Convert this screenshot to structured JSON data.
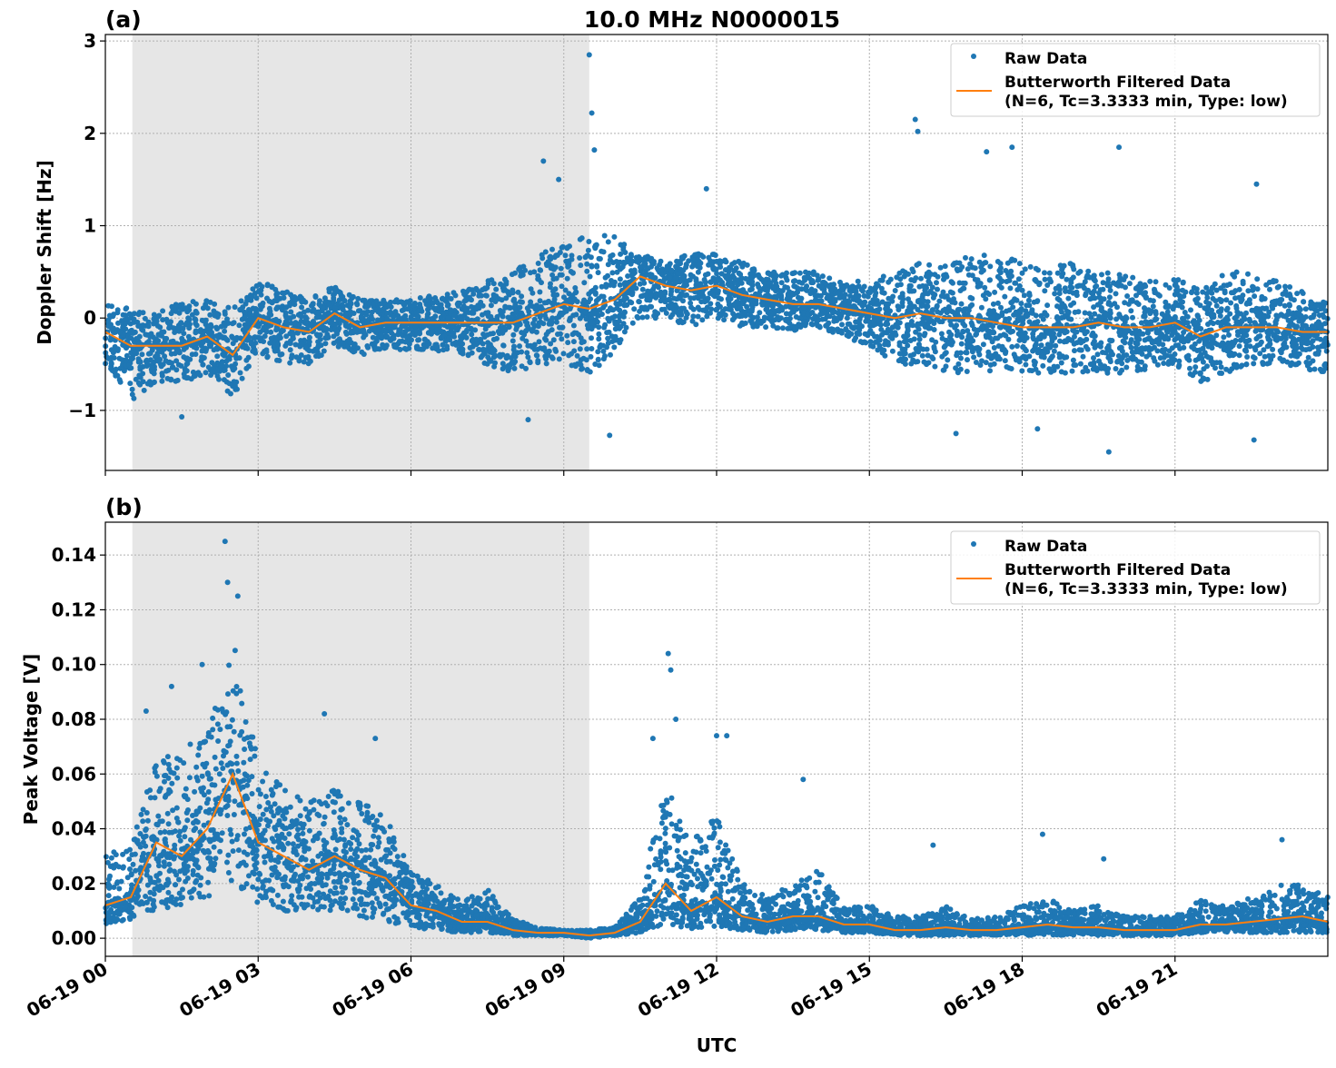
{
  "title": "10.0 MHz N0000015",
  "xlabel": "UTC",
  "x_tick_labels": [
    "06-19 00",
    "06-19 03",
    "06-19 06",
    "06-19 09",
    "06-19 12",
    "06-19 15",
    "06-19 18",
    "06-19 21"
  ],
  "x_ticks_hours": [
    0,
    3,
    6,
    9,
    12,
    15,
    18,
    21
  ],
  "xlim_hours": [
    0,
    24
  ],
  "shaded_span_hours": [
    0.53,
    9.5
  ],
  "colors": {
    "raw": "#1f77b4",
    "filtered": "#ff7f0e",
    "shade": "#e6e6e6",
    "grid": "#b0b0b0"
  },
  "legend": {
    "raw": "Raw Data",
    "filtered_line1": "Butterworth Filtered Data",
    "filtered_line2": "(N=6, Tc=3.3333 min, Type: low)",
    "placement": "top-right"
  },
  "chart_data": [
    {
      "panel_label": "(a)",
      "type": "scatter",
      "ylabel": "Doppler Shift [Hz]",
      "ylim": [
        -1.65,
        3.07
      ],
      "y_ticks": [
        3,
        2,
        1,
        0,
        -1
      ],
      "y_tick_labels": [
        "3",
        "2",
        "1",
        "0",
        "−1"
      ],
      "grid": true,
      "x_hours": [
        0,
        0.5,
        1,
        1.5,
        2,
        2.5,
        3,
        3.5,
        4,
        4.5,
        5,
        5.5,
        6,
        6.5,
        7,
        7.5,
        8,
        8.5,
        9,
        9.5,
        10,
        10.5,
        11,
        11.5,
        12,
        12.5,
        13,
        13.5,
        14,
        14.5,
        15,
        15.5,
        16,
        16.5,
        17,
        17.5,
        18,
        18.5,
        19,
        19.5,
        20,
        20.5,
        21,
        21.5,
        22,
        22.5,
        23,
        23.5,
        24
      ],
      "filtered": [
        -0.15,
        -0.3,
        -0.3,
        -0.3,
        -0.2,
        -0.4,
        0.0,
        -0.1,
        -0.15,
        0.05,
        -0.1,
        -0.05,
        -0.05,
        -0.05,
        -0.05,
        -0.05,
        -0.05,
        0.05,
        0.15,
        0.1,
        0.2,
        0.45,
        0.35,
        0.3,
        0.35,
        0.25,
        0.2,
        0.15,
        0.15,
        0.1,
        0.05,
        0.0,
        0.05,
        0.0,
        0.0,
        -0.05,
        -0.1,
        -0.1,
        -0.1,
        -0.05,
        -0.1,
        -0.1,
        -0.05,
        -0.2,
        -0.1,
        -0.1,
        -0.1,
        -0.15,
        -0.15
      ],
      "raw_low": [
        -0.5,
        -0.9,
        -0.7,
        -0.7,
        -0.6,
        -0.85,
        -0.4,
        -0.5,
        -0.5,
        -0.3,
        -0.4,
        -0.35,
        -0.35,
        -0.35,
        -0.4,
        -0.5,
        -0.6,
        -0.5,
        -0.5,
        -0.6,
        -0.4,
        0.0,
        0.0,
        -0.1,
        0.0,
        -0.1,
        -0.1,
        -0.15,
        -0.1,
        -0.2,
        -0.3,
        -0.5,
        -0.5,
        -0.6,
        -0.6,
        -0.6,
        -0.6,
        -0.6,
        -0.6,
        -0.6,
        -0.6,
        -0.55,
        -0.5,
        -0.7,
        -0.6,
        -0.5,
        -0.5,
        -0.55,
        -0.6
      ],
      "raw_high": [
        0.15,
        0.1,
        0.05,
        0.2,
        0.2,
        0.1,
        0.4,
        0.3,
        0.2,
        0.35,
        0.2,
        0.2,
        0.2,
        0.25,
        0.3,
        0.4,
        0.5,
        0.7,
        0.8,
        0.9,
        0.9,
        0.7,
        0.6,
        0.7,
        0.7,
        0.6,
        0.5,
        0.5,
        0.5,
        0.4,
        0.4,
        0.5,
        0.6,
        0.6,
        0.7,
        0.7,
        0.6,
        0.6,
        0.6,
        0.5,
        0.5,
        0.4,
        0.45,
        0.3,
        0.5,
        0.5,
        0.4,
        0.3,
        0.2
      ],
      "raw_outliers": [
        [
          9.5,
          2.85
        ],
        [
          9.55,
          2.22
        ],
        [
          9.6,
          1.82
        ],
        [
          15.9,
          2.15
        ],
        [
          15.95,
          2.02
        ],
        [
          17.3,
          1.8
        ],
        [
          17.8,
          1.85
        ],
        [
          19.9,
          1.85
        ],
        [
          8.6,
          1.7
        ],
        [
          8.9,
          1.5
        ],
        [
          11.8,
          1.4
        ],
        [
          22.6,
          1.45
        ],
        [
          9.9,
          -1.27
        ],
        [
          19.7,
          -1.45
        ],
        [
          22.55,
          -1.32
        ],
        [
          1.5,
          -1.07
        ],
        [
          8.3,
          -1.1
        ],
        [
          16.7,
          -1.25
        ],
        [
          18.3,
          -1.2
        ]
      ]
    },
    {
      "panel_label": "(b)",
      "type": "scatter",
      "ylabel": "Peak Voltage [V]",
      "ylim": [
        -0.0066,
        0.152
      ],
      "y_ticks": [
        0.14,
        0.12,
        0.1,
        0.08,
        0.06,
        0.04,
        0.02,
        0.0
      ],
      "y_tick_labels": [
        "0.14",
        "0.12",
        "0.10",
        "0.08",
        "0.06",
        "0.04",
        "0.02",
        "0.00"
      ],
      "grid": true,
      "x_hours": [
        0,
        0.5,
        1,
        1.5,
        2,
        2.5,
        3,
        3.5,
        4,
        4.5,
        5,
        5.5,
        6,
        6.5,
        7,
        7.5,
        8,
        8.5,
        9,
        9.5,
        10,
        10.5,
        11,
        11.5,
        12,
        12.5,
        13,
        13.5,
        14,
        14.5,
        15,
        15.5,
        16,
        16.5,
        17,
        17.5,
        18,
        18.5,
        19,
        19.5,
        20,
        20.5,
        21,
        21.5,
        22,
        22.5,
        23,
        23.5,
        24
      ],
      "filtered": [
        0.012,
        0.015,
        0.035,
        0.03,
        0.04,
        0.06,
        0.035,
        0.03,
        0.025,
        0.03,
        0.025,
        0.022,
        0.012,
        0.01,
        0.006,
        0.006,
        0.003,
        0.002,
        0.002,
        0.001,
        0.002,
        0.006,
        0.02,
        0.01,
        0.015,
        0.008,
        0.006,
        0.008,
        0.008,
        0.005,
        0.005,
        0.003,
        0.003,
        0.004,
        0.003,
        0.003,
        0.004,
        0.005,
        0.004,
        0.004,
        0.003,
        0.003,
        0.003,
        0.005,
        0.005,
        0.006,
        0.007,
        0.008,
        0.006
      ],
      "raw_low": [
        0.005,
        0.007,
        0.01,
        0.012,
        0.015,
        0.02,
        0.012,
        0.01,
        0.01,
        0.01,
        0.008,
        0.006,
        0.004,
        0.003,
        0.002,
        0.002,
        0.001,
        0.001,
        0.001,
        0.0,
        0.001,
        0.002,
        0.005,
        0.003,
        0.004,
        0.003,
        0.002,
        0.003,
        0.003,
        0.002,
        0.002,
        0.001,
        0.001,
        0.001,
        0.001,
        0.001,
        0.001,
        0.001,
        0.001,
        0.001,
        0.001,
        0.001,
        0.001,
        0.002,
        0.002,
        0.002,
        0.002,
        0.002,
        0.002
      ],
      "raw_high": [
        0.03,
        0.035,
        0.065,
        0.07,
        0.075,
        0.11,
        0.065,
        0.055,
        0.05,
        0.055,
        0.05,
        0.045,
        0.025,
        0.02,
        0.014,
        0.018,
        0.007,
        0.004,
        0.003,
        0.003,
        0.004,
        0.015,
        0.06,
        0.035,
        0.045,
        0.02,
        0.015,
        0.02,
        0.025,
        0.012,
        0.012,
        0.008,
        0.008,
        0.012,
        0.007,
        0.008,
        0.012,
        0.015,
        0.01,
        0.012,
        0.008,
        0.008,
        0.008,
        0.014,
        0.012,
        0.015,
        0.02,
        0.02,
        0.015
      ],
      "raw_outliers": [
        [
          2.35,
          0.145
        ],
        [
          2.4,
          0.13
        ],
        [
          2.6,
          0.125
        ],
        [
          1.9,
          0.1
        ],
        [
          11.05,
          0.104
        ],
        [
          11.1,
          0.098
        ],
        [
          11.2,
          0.08
        ],
        [
          12.0,
          0.074
        ],
        [
          12.2,
          0.074
        ],
        [
          13.7,
          0.058
        ],
        [
          16.25,
          0.034
        ],
        [
          18.4,
          0.038
        ],
        [
          19.6,
          0.029
        ],
        [
          23.1,
          0.036
        ],
        [
          0.8,
          0.083
        ],
        [
          1.3,
          0.092
        ],
        [
          4.3,
          0.082
        ],
        [
          5.3,
          0.073
        ],
        [
          10.75,
          0.073
        ]
      ]
    }
  ]
}
